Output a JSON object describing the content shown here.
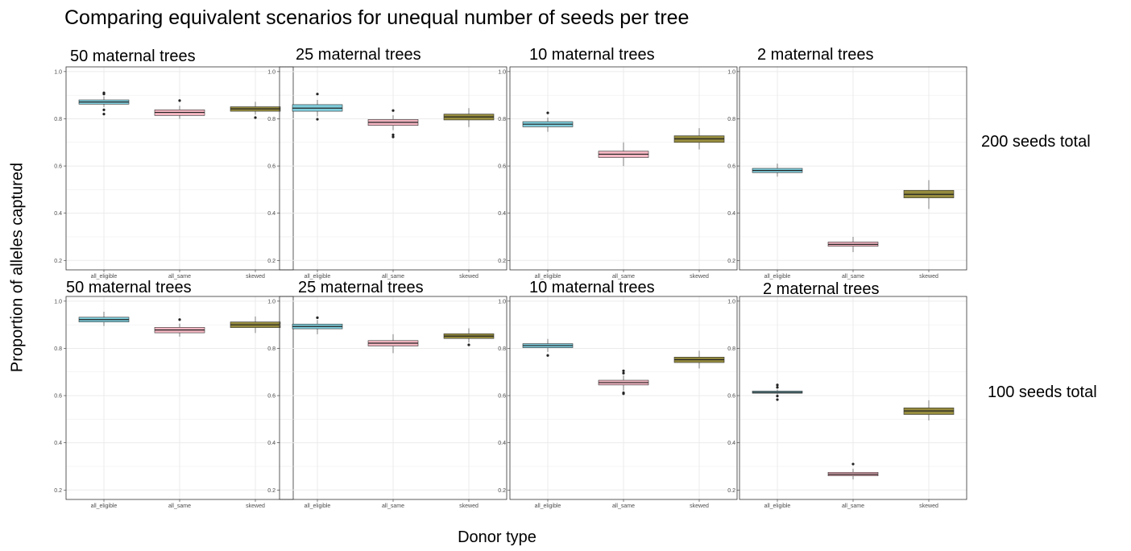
{
  "title": "Comparing equivalent scenarios for unequal number of seeds per tree",
  "ylabel": "Proportion of alleles captured",
  "xlabel": "Donor type",
  "colors": {
    "all_eligible": "#7fcddc",
    "all_same": "#f4b6c2",
    "skewed": "#968c3e",
    "grid": "#ebebeb",
    "panel_border": "#333333"
  },
  "chart_data": {
    "type": "box",
    "categories": [
      "all_eligible",
      "all_same",
      "skewed"
    ],
    "ylim": [
      0.16,
      1.02
    ],
    "yticks": [
      "0.2",
      "0.4",
      "0.6",
      "0.8",
      "1.0"
    ],
    "grid": true,
    "row_labels": [
      "200 seeds total",
      "100 seeds total"
    ],
    "panels": [
      {
        "row": 0,
        "col": 0,
        "title": "50 maternal trees",
        "boxes": [
          {
            "category": "all_eligible",
            "q1": 0.862,
            "median": 0.871,
            "q3": 0.88,
            "wlo": 0.85,
            "whi": 0.895,
            "outliers": [
              0.91,
              0.905,
              0.838,
              0.82
            ]
          },
          {
            "category": "all_same",
            "q1": 0.814,
            "median": 0.827,
            "q3": 0.838,
            "wlo": 0.8,
            "whi": 0.855,
            "outliers": [
              0.877
            ]
          },
          {
            "category": "skewed",
            "q1": 0.832,
            "median": 0.842,
            "q3": 0.851,
            "wlo": 0.818,
            "whi": 0.872,
            "outliers": [
              0.805
            ]
          }
        ]
      },
      {
        "row": 0,
        "col": 1,
        "title": "25 maternal trees",
        "boxes": [
          {
            "category": "all_eligible",
            "q1": 0.832,
            "median": 0.845,
            "q3": 0.86,
            "wlo": 0.81,
            "whi": 0.88,
            "outliers": [
              0.905,
              0.798
            ]
          },
          {
            "category": "all_same",
            "q1": 0.772,
            "median": 0.785,
            "q3": 0.797,
            "wlo": 0.752,
            "whi": 0.815,
            "outliers": [
              0.835,
              0.732,
              0.723
            ]
          },
          {
            "category": "skewed",
            "q1": 0.795,
            "median": 0.808,
            "q3": 0.82,
            "wlo": 0.765,
            "whi": 0.845,
            "outliers": []
          }
        ]
      },
      {
        "row": 0,
        "col": 2,
        "title": "10 maternal trees",
        "boxes": [
          {
            "category": "all_eligible",
            "q1": 0.766,
            "median": 0.777,
            "q3": 0.788,
            "wlo": 0.745,
            "whi": 0.805,
            "outliers": [
              0.825
            ]
          },
          {
            "category": "all_same",
            "q1": 0.636,
            "median": 0.65,
            "q3": 0.663,
            "wlo": 0.6,
            "whi": 0.7,
            "outliers": []
          },
          {
            "category": "skewed",
            "q1": 0.7,
            "median": 0.715,
            "q3": 0.728,
            "wlo": 0.67,
            "whi": 0.76,
            "outliers": []
          }
        ]
      },
      {
        "row": 0,
        "col": 3,
        "title": "2 maternal trees",
        "boxes": [
          {
            "category": "all_eligible",
            "q1": 0.572,
            "median": 0.581,
            "q3": 0.59,
            "wlo": 0.555,
            "whi": 0.61,
            "outliers": []
          },
          {
            "category": "all_same",
            "q1": 0.26,
            "median": 0.268,
            "q3": 0.278,
            "wlo": 0.235,
            "whi": 0.3,
            "outliers": []
          },
          {
            "category": "skewed",
            "q1": 0.465,
            "median": 0.48,
            "q3": 0.497,
            "wlo": 0.418,
            "whi": 0.54,
            "outliers": []
          }
        ]
      },
      {
        "row": 1,
        "col": 0,
        "title": "50 maternal trees",
        "boxes": [
          {
            "category": "all_eligible",
            "q1": 0.912,
            "median": 0.922,
            "q3": 0.932,
            "wlo": 0.895,
            "whi": 0.955,
            "outliers": []
          },
          {
            "category": "all_same",
            "q1": 0.866,
            "median": 0.878,
            "q3": 0.889,
            "wlo": 0.85,
            "whi": 0.905,
            "outliers": [
              0.922
            ]
          },
          {
            "category": "skewed",
            "q1": 0.888,
            "median": 0.9,
            "q3": 0.912,
            "wlo": 0.865,
            "whi": 0.935,
            "outliers": []
          }
        ]
      },
      {
        "row": 1,
        "col": 1,
        "title": "25 maternal trees",
        "boxes": [
          {
            "category": "all_eligible",
            "q1": 0.883,
            "median": 0.893,
            "q3": 0.903,
            "wlo": 0.86,
            "whi": 0.92,
            "outliers": [
              0.93
            ]
          },
          {
            "category": "all_same",
            "q1": 0.81,
            "median": 0.822,
            "q3": 0.833,
            "wlo": 0.78,
            "whi": 0.86,
            "outliers": []
          },
          {
            "category": "skewed",
            "q1": 0.842,
            "median": 0.852,
            "q3": 0.862,
            "wlo": 0.825,
            "whi": 0.885,
            "outliers": [
              0.815
            ]
          }
        ]
      },
      {
        "row": 1,
        "col": 2,
        "title": "10 maternal trees",
        "boxes": [
          {
            "category": "all_eligible",
            "q1": 0.803,
            "median": 0.812,
            "q3": 0.82,
            "wlo": 0.785,
            "whi": 0.84,
            "outliers": [
              0.77
            ]
          },
          {
            "category": "all_same",
            "q1": 0.645,
            "median": 0.655,
            "q3": 0.665,
            "wlo": 0.62,
            "whi": 0.685,
            "outliers": [
              0.705,
              0.695,
              0.612,
              0.608
            ]
          },
          {
            "category": "skewed",
            "q1": 0.74,
            "median": 0.752,
            "q3": 0.763,
            "wlo": 0.715,
            "whi": 0.79,
            "outliers": []
          }
        ]
      },
      {
        "row": 1,
        "col": 3,
        "title": "2 maternal trees",
        "boxes": [
          {
            "category": "all_eligible",
            "q1": 0.61,
            "median": 0.614,
            "q3": 0.619,
            "wlo": 0.605,
            "whi": 0.625,
            "outliers": [
              0.645,
              0.635,
              0.598,
              0.583
            ]
          },
          {
            "category": "all_same",
            "q1": 0.26,
            "median": 0.267,
            "q3": 0.275,
            "wlo": 0.245,
            "whi": 0.29,
            "outliers": [
              0.31
            ]
          },
          {
            "category": "skewed",
            "q1": 0.52,
            "median": 0.535,
            "q3": 0.548,
            "wlo": 0.495,
            "whi": 0.58,
            "outliers": []
          }
        ]
      }
    ]
  }
}
